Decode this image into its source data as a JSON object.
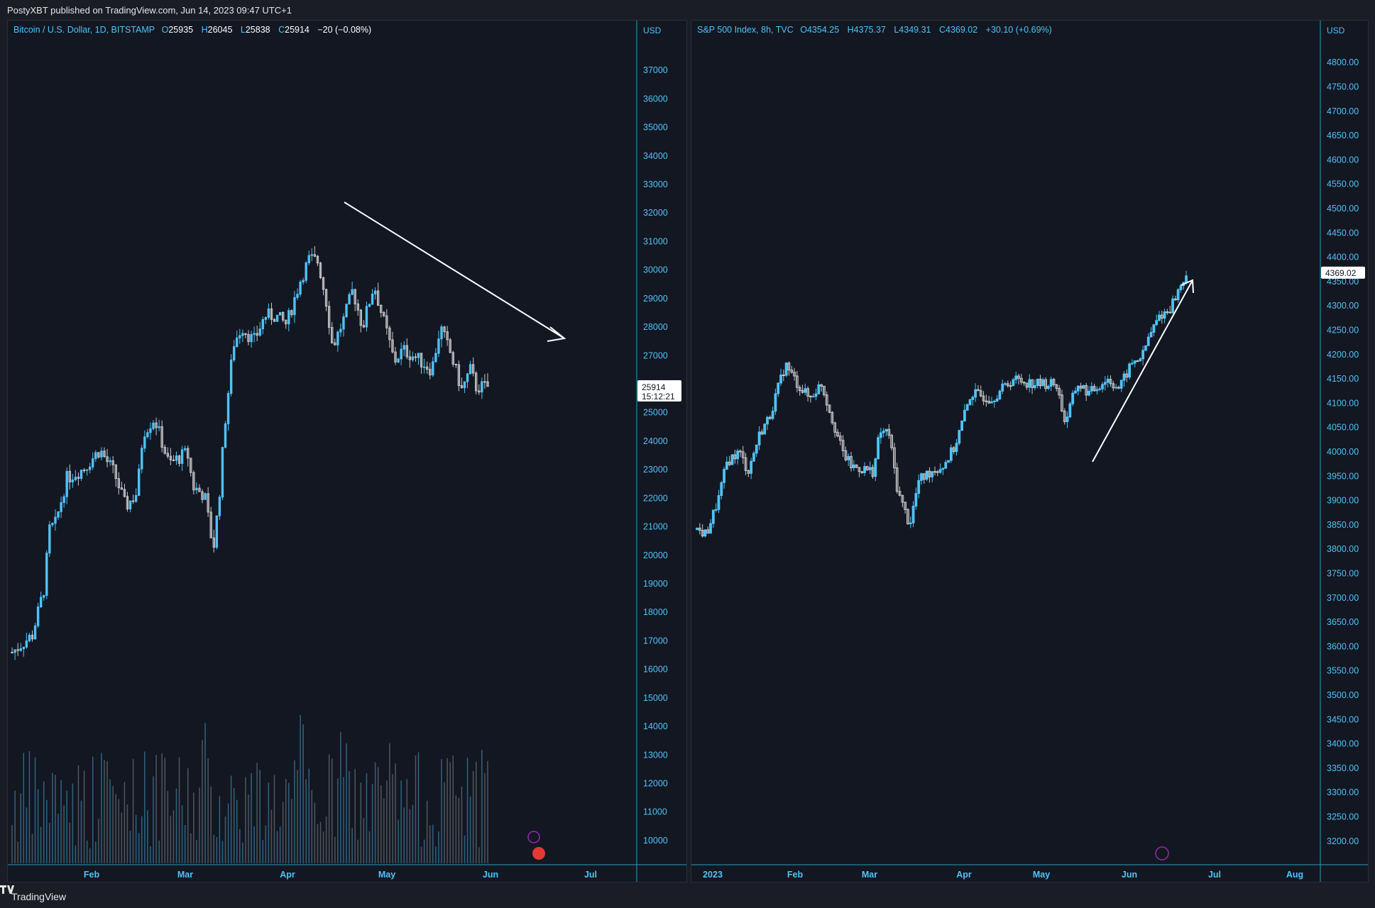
{
  "header": {
    "published": "PostyXBT published on TradingView.com, Jun 14, 2023 09:47 UTC+1"
  },
  "footer": {
    "brand": "TradingView"
  },
  "colors": {
    "up": "#4fc3f7",
    "down": "#c8c8c8",
    "background": "#131722",
    "axis": "#2a9fbf",
    "text": "#4fc3f7"
  },
  "chart_data": [
    {
      "type": "candlestick",
      "symbol": "Bitcoin / U.S. Dollar, 1D, BITSTAMP",
      "ohlc_label": {
        "o_label": "O",
        "o": "25935",
        "h_label": "H",
        "h": "26045",
        "l_label": "L",
        "l": "25838",
        "c_label": "C",
        "c": "25914",
        "change": "−20 (−0.08%)"
      },
      "axis_unit": "USD",
      "y_ticks": [
        37000,
        36000,
        35000,
        34000,
        33000,
        32000,
        31000,
        30000,
        29000,
        28000,
        27000,
        26000,
        25000,
        24000,
        23000,
        22000,
        21000,
        20000,
        19000,
        18000,
        17000,
        16000,
        15000,
        14000,
        13000,
        12000,
        11000,
        10000
      ],
      "ylim": [
        9600,
        37800
      ],
      "x_ticks": [
        "Feb",
        "Mar",
        "Apr",
        "May",
        "Jun",
        "Jul"
      ],
      "last_price": "25914",
      "countdown": "15:12:21",
      "annotation": "downward arrow",
      "series": [
        {
          "x": "Jan 1",
          "y": 16600
        },
        {
          "x": "Jan 8",
          "y": 17200
        },
        {
          "x": "Jan 12",
          "y": 18800
        },
        {
          "x": "Jan 14",
          "y": 20900
        },
        {
          "x": "Jan 16",
          "y": 21100
        },
        {
          "x": "Jan 20",
          "y": 22700
        },
        {
          "x": "Jan 26",
          "y": 23050
        },
        {
          "x": "Feb 1",
          "y": 23700
        },
        {
          "x": "Feb 6",
          "y": 22900
        },
        {
          "x": "Feb 10",
          "y": 21700
        },
        {
          "x": "Feb 14",
          "y": 22200
        },
        {
          "x": "Feb 16",
          "y": 24300
        },
        {
          "x": "Feb 20",
          "y": 24800
        },
        {
          "x": "Feb 25",
          "y": 23200
        },
        {
          "x": "Mar 1",
          "y": 23600
        },
        {
          "x": "Mar 3",
          "y": 22400
        },
        {
          "x": "Mar 7",
          "y": 22100
        },
        {
          "x": "Mar 10",
          "y": 20200
        },
        {
          "x": "Mar 12",
          "y": 22000
        },
        {
          "x": "Mar 14",
          "y": 24600
        },
        {
          "x": "Mar 17",
          "y": 27400
        },
        {
          "x": "Mar 20",
          "y": 28000
        },
        {
          "x": "Mar 24",
          "y": 27500
        },
        {
          "x": "Mar 28",
          "y": 28400
        },
        {
          "x": "Apr 1",
          "y": 28400
        },
        {
          "x": "Apr 5",
          "y": 28100
        },
        {
          "x": "Apr 10",
          "y": 29700
        },
        {
          "x": "Apr 13",
          "y": 30400
        },
        {
          "x": "Apr 16",
          "y": 30300
        },
        {
          "x": "Apr 19",
          "y": 28800
        },
        {
          "x": "Apr 21",
          "y": 27300
        },
        {
          "x": "Apr 25",
          "y": 28300
        },
        {
          "x": "Apr 28",
          "y": 29300
        },
        {
          "x": "May 1",
          "y": 28000
        },
        {
          "x": "May 5",
          "y": 29500
        },
        {
          "x": "May 7",
          "y": 28700
        },
        {
          "x": "May 10",
          "y": 27600
        },
        {
          "x": "May 12",
          "y": 26800
        },
        {
          "x": "May 15",
          "y": 27200
        },
        {
          "x": "May 20",
          "y": 26900
        },
        {
          "x": "May 25",
          "y": 26500
        },
        {
          "x": "May 28",
          "y": 28000
        },
        {
          "x": "Jun 1",
          "y": 27100
        },
        {
          "x": "Jun 5",
          "y": 25800
        },
        {
          "x": "Jun 8",
          "y": 26500
        },
        {
          "x": "Jun 10",
          "y": 25900
        },
        {
          "x": "Jun 14",
          "y": 25914
        }
      ]
    },
    {
      "type": "candlestick",
      "symbol": "S&P 500 Index, 8h, TVC",
      "ohlc_label": {
        "o_label": "O",
        "o": "4354.25",
        "h_label": "H",
        "h": "4375.37",
        "l_label": "L",
        "l": "4349.31",
        "c_label": "C",
        "c": "4369.02",
        "change": "+30.10 (+0.69%)"
      },
      "axis_unit": "USD",
      "y_ticks": [
        4800,
        4750,
        4700,
        4650,
        4600,
        4550,
        4500,
        4450,
        4400,
        4350,
        4300,
        4250,
        4200,
        4150,
        4100,
        4050,
        4000,
        3950,
        3900,
        3850,
        3800,
        3750,
        3700,
        3650,
        3600,
        3550,
        3500,
        3450,
        3400,
        3350,
        3300,
        3250,
        3200
      ],
      "ylim": [
        3175,
        4825
      ],
      "x_ticks": [
        "2023",
        "Feb",
        "Mar",
        "Apr",
        "May",
        "Jun",
        "Jul",
        "Aug"
      ],
      "last_price": "4369.02",
      "annotation": "upward arrow",
      "series": [
        {
          "x": "Jan 3",
          "y": 3840
        },
        {
          "x": "Jan 6",
          "y": 3830
        },
        {
          "x": "Jan 10",
          "y": 3900
        },
        {
          "x": "Jan 13",
          "y": 3980
        },
        {
          "x": "Jan 17",
          "y": 4000
        },
        {
          "x": "Jan 20",
          "y": 3960
        },
        {
          "x": "Jan 24",
          "y": 4040
        },
        {
          "x": "Jan 27",
          "y": 4070
        },
        {
          "x": "Feb 2",
          "y": 4180
        },
        {
          "x": "Feb 6",
          "y": 4140
        },
        {
          "x": "Feb 10",
          "y": 4110
        },
        {
          "x": "Feb 14",
          "y": 4140
        },
        {
          "x": "Feb 17",
          "y": 4080
        },
        {
          "x": "Feb 21",
          "y": 4000
        },
        {
          "x": "Feb 24",
          "y": 3970
        },
        {
          "x": "Mar 1",
          "y": 3960
        },
        {
          "x": "Mar 3",
          "y": 4040
        },
        {
          "x": "Mar 6",
          "y": 4040
        },
        {
          "x": "Mar 9",
          "y": 3920
        },
        {
          "x": "Mar 13",
          "y": 3850
        },
        {
          "x": "Mar 16",
          "y": 3940
        },
        {
          "x": "Mar 20",
          "y": 3960
        },
        {
          "x": "Mar 24",
          "y": 3970
        },
        {
          "x": "Mar 28",
          "y": 4010
        },
        {
          "x": "Apr 3",
          "y": 4120
        },
        {
          "x": "Apr 10",
          "y": 4110
        },
        {
          "x": "Apr 17",
          "y": 4150
        },
        {
          "x": "Apr 24",
          "y": 4140
        },
        {
          "x": "May 1",
          "y": 4140
        },
        {
          "x": "May 4",
          "y": 4060
        },
        {
          "x": "May 8",
          "y": 4140
        },
        {
          "x": "May 12",
          "y": 4120
        },
        {
          "x": "May 18",
          "y": 4150
        },
        {
          "x": "May 22",
          "y": 4130
        },
        {
          "x": "May 26",
          "y": 4180
        },
        {
          "x": "May 30",
          "y": 4200
        },
        {
          "x": "Jun 1",
          "y": 4230
        },
        {
          "x": "Jun 5",
          "y": 4280
        },
        {
          "x": "Jun 8",
          "y": 4290
        },
        {
          "x": "Jun 12",
          "y": 4340
        },
        {
          "x": "Jun 14",
          "y": 4369.02
        }
      ]
    }
  ]
}
